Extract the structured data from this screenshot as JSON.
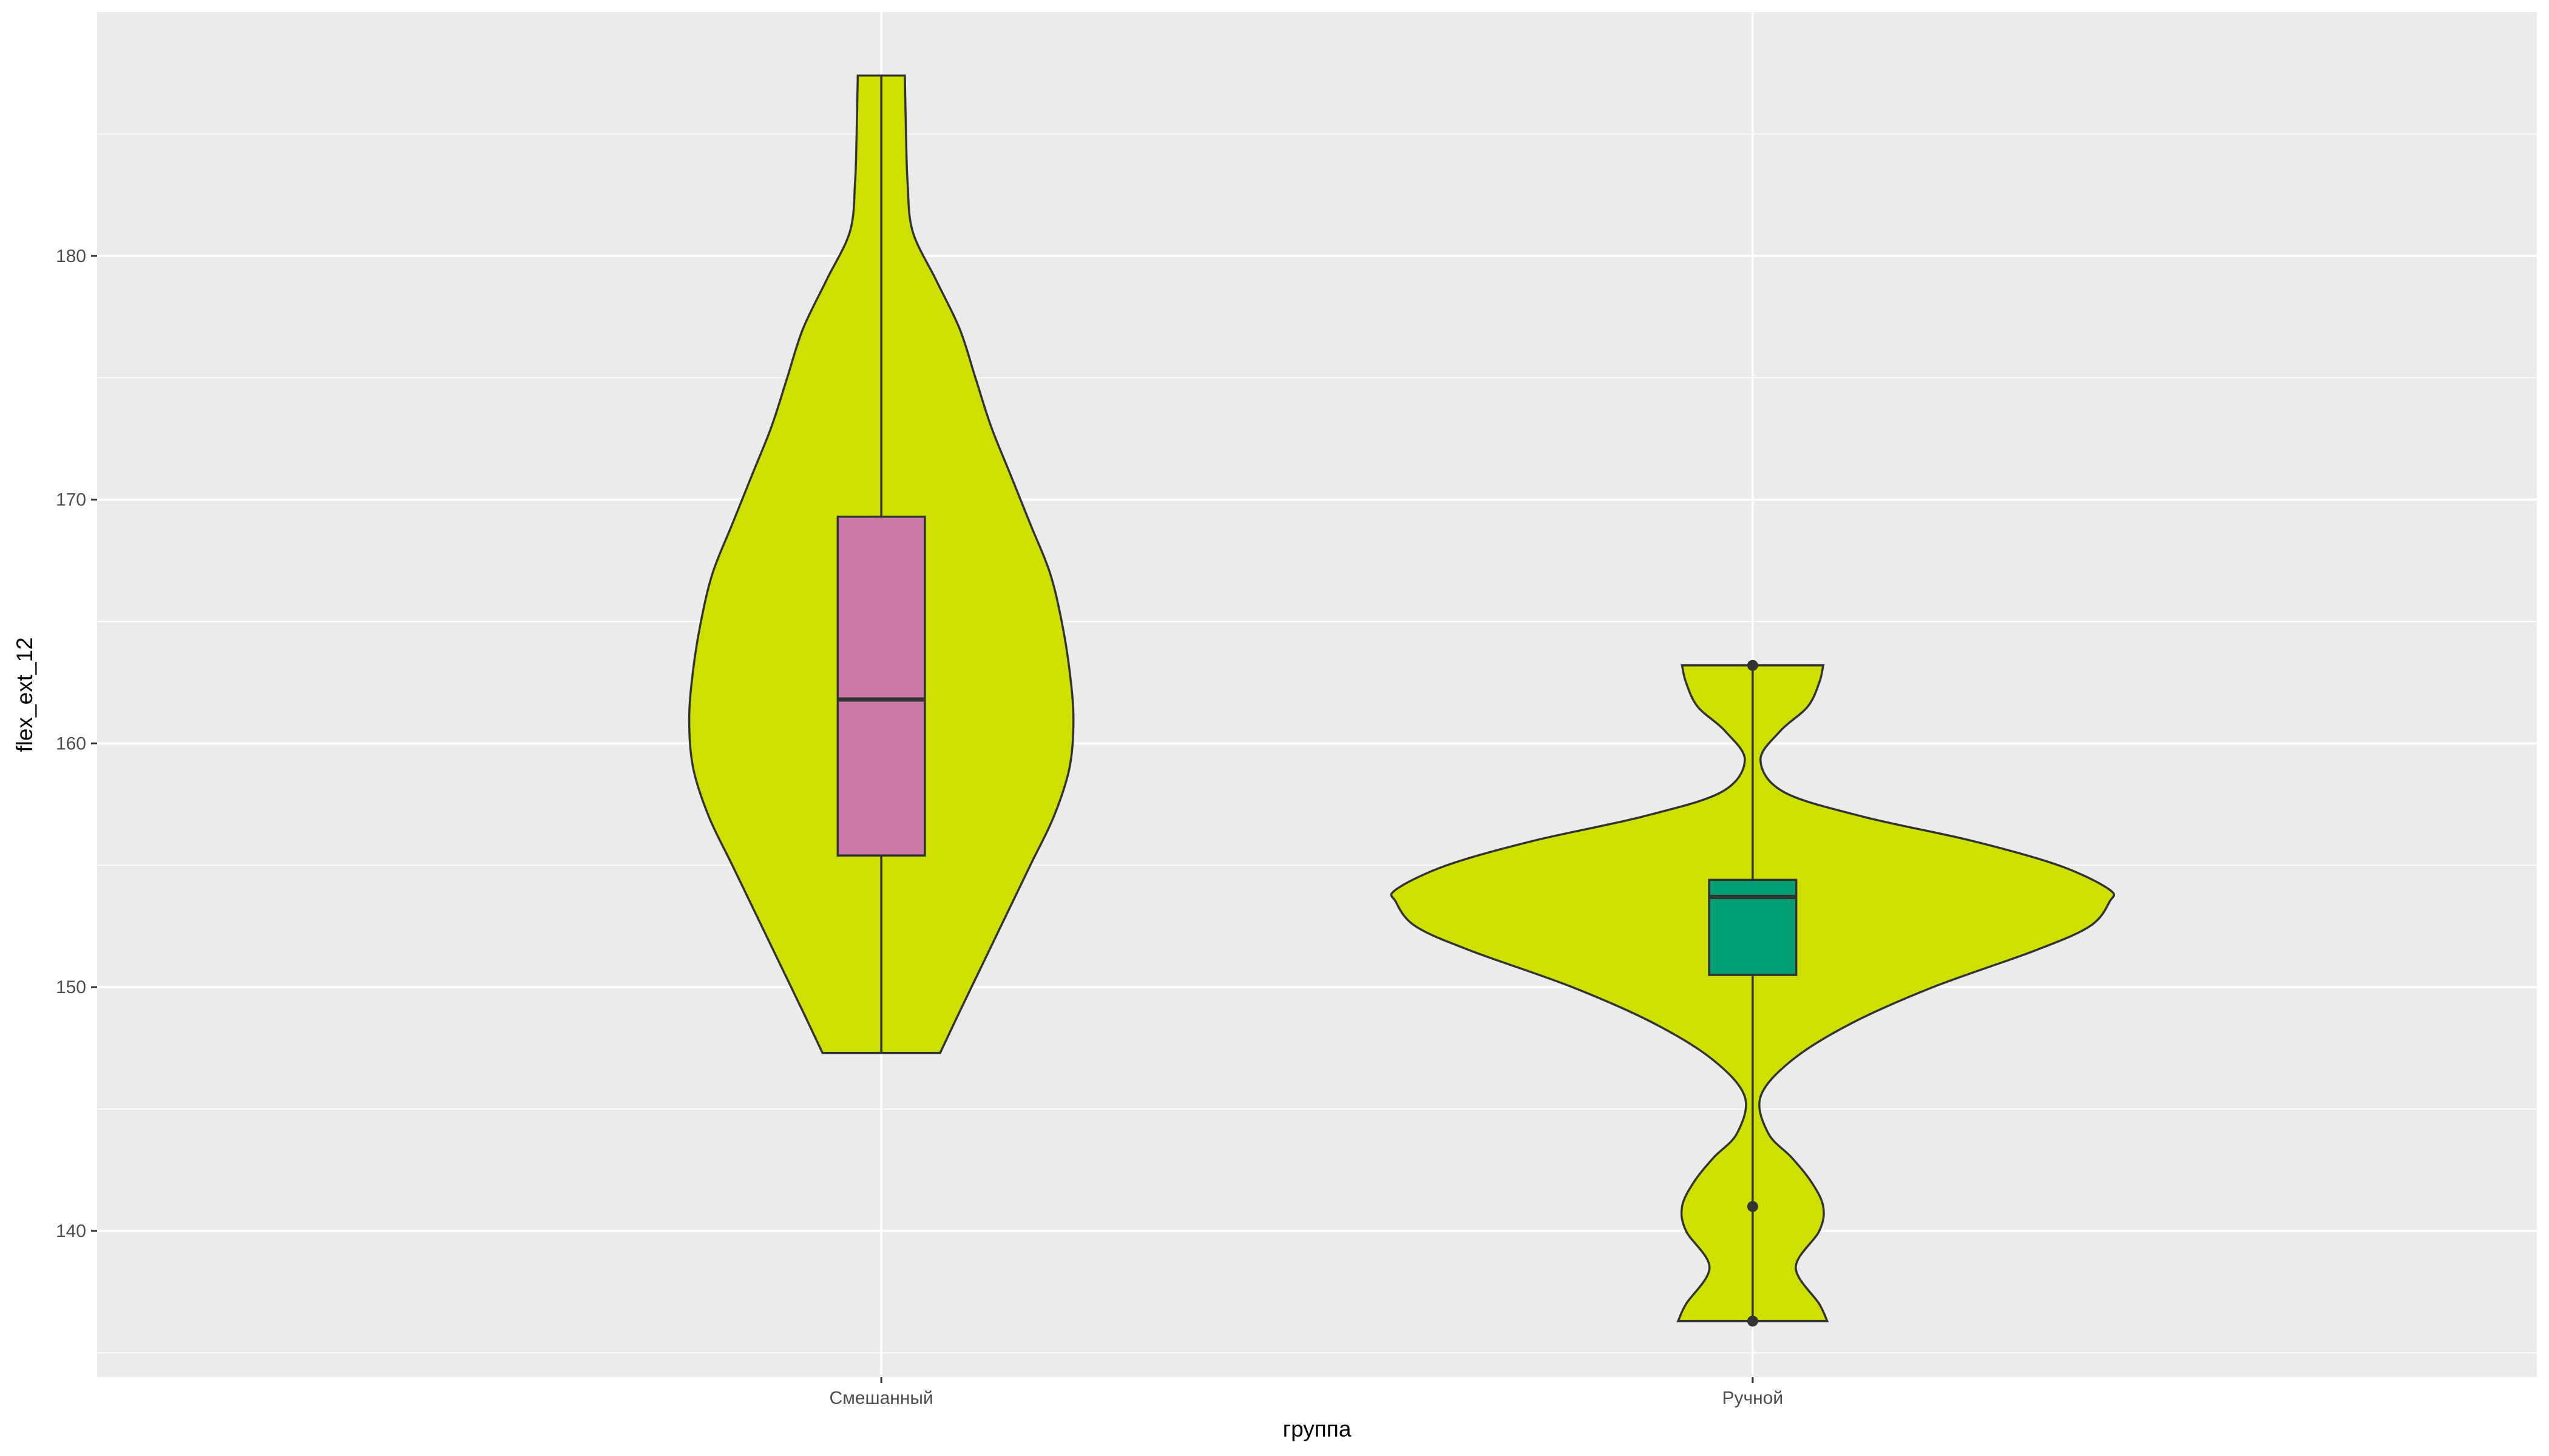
{
  "chart_data": {
    "type": "violin",
    "xlabel": "группа",
    "ylabel": "flex_ext_12",
    "categories": [
      "Смешанный",
      "Ручной"
    ],
    "ylim": [
      134,
      190
    ],
    "yticks": [
      140,
      150,
      160,
      170,
      180
    ],
    "grid": true,
    "colors": {
      "panel": "#ebebeb",
      "grid": "#ffffff",
      "violin_fill": "#cde000",
      "outline": "#333333",
      "box_fill": [
        "#cc79a7",
        "#009e73"
      ]
    },
    "groups": [
      {
        "name": "Смешанный",
        "min": 147.3,
        "q1": 155.4,
        "median": 161.8,
        "q3": 169.3,
        "max": 187.4,
        "outliers": [],
        "density": [
          [
            147.3,
            0.15
          ],
          [
            149,
            0.2
          ],
          [
            151,
            0.26
          ],
          [
            153,
            0.32
          ],
          [
            155,
            0.38
          ],
          [
            157,
            0.44
          ],
          [
            159,
            0.48
          ],
          [
            161,
            0.49
          ],
          [
            163,
            0.48
          ],
          [
            165,
            0.46
          ],
          [
            167,
            0.43
          ],
          [
            169,
            0.38
          ],
          [
            171,
            0.33
          ],
          [
            173,
            0.28
          ],
          [
            175,
            0.24
          ],
          [
            177,
            0.2
          ],
          [
            179,
            0.14
          ],
          [
            181,
            0.08
          ],
          [
            183,
            0.067
          ],
          [
            185,
            0.063
          ],
          [
            187.4,
            0.06
          ]
        ]
      },
      {
        "name": "Ручной",
        "min": 136.3,
        "q1": 150.5,
        "median": 153.7,
        "q3": 154.4,
        "max": 163.2,
        "outliers": [
          163.2,
          141.0,
          136.3
        ],
        "density": [
          [
            136.3,
            0.19
          ],
          [
            137,
            0.17
          ],
          [
            138.5,
            0.11
          ],
          [
            140,
            0.17
          ],
          [
            141,
            0.18
          ],
          [
            142,
            0.15
          ],
          [
            143,
            0.1
          ],
          [
            144,
            0.04
          ],
          [
            145.5,
            0.02
          ],
          [
            147,
            0.1
          ],
          [
            148.5,
            0.25
          ],
          [
            150,
            0.46
          ],
          [
            151.5,
            0.72
          ],
          [
            152.5,
            0.86
          ],
          [
            153.5,
            0.91
          ],
          [
            154,
            0.91
          ],
          [
            155,
            0.78
          ],
          [
            156,
            0.56
          ],
          [
            157,
            0.28
          ],
          [
            158,
            0.08
          ],
          [
            159.3,
            0.02
          ],
          [
            160.5,
            0.07
          ],
          [
            161.5,
            0.14
          ],
          [
            162.5,
            0.17
          ],
          [
            163.2,
            0.18
          ]
        ]
      }
    ]
  }
}
